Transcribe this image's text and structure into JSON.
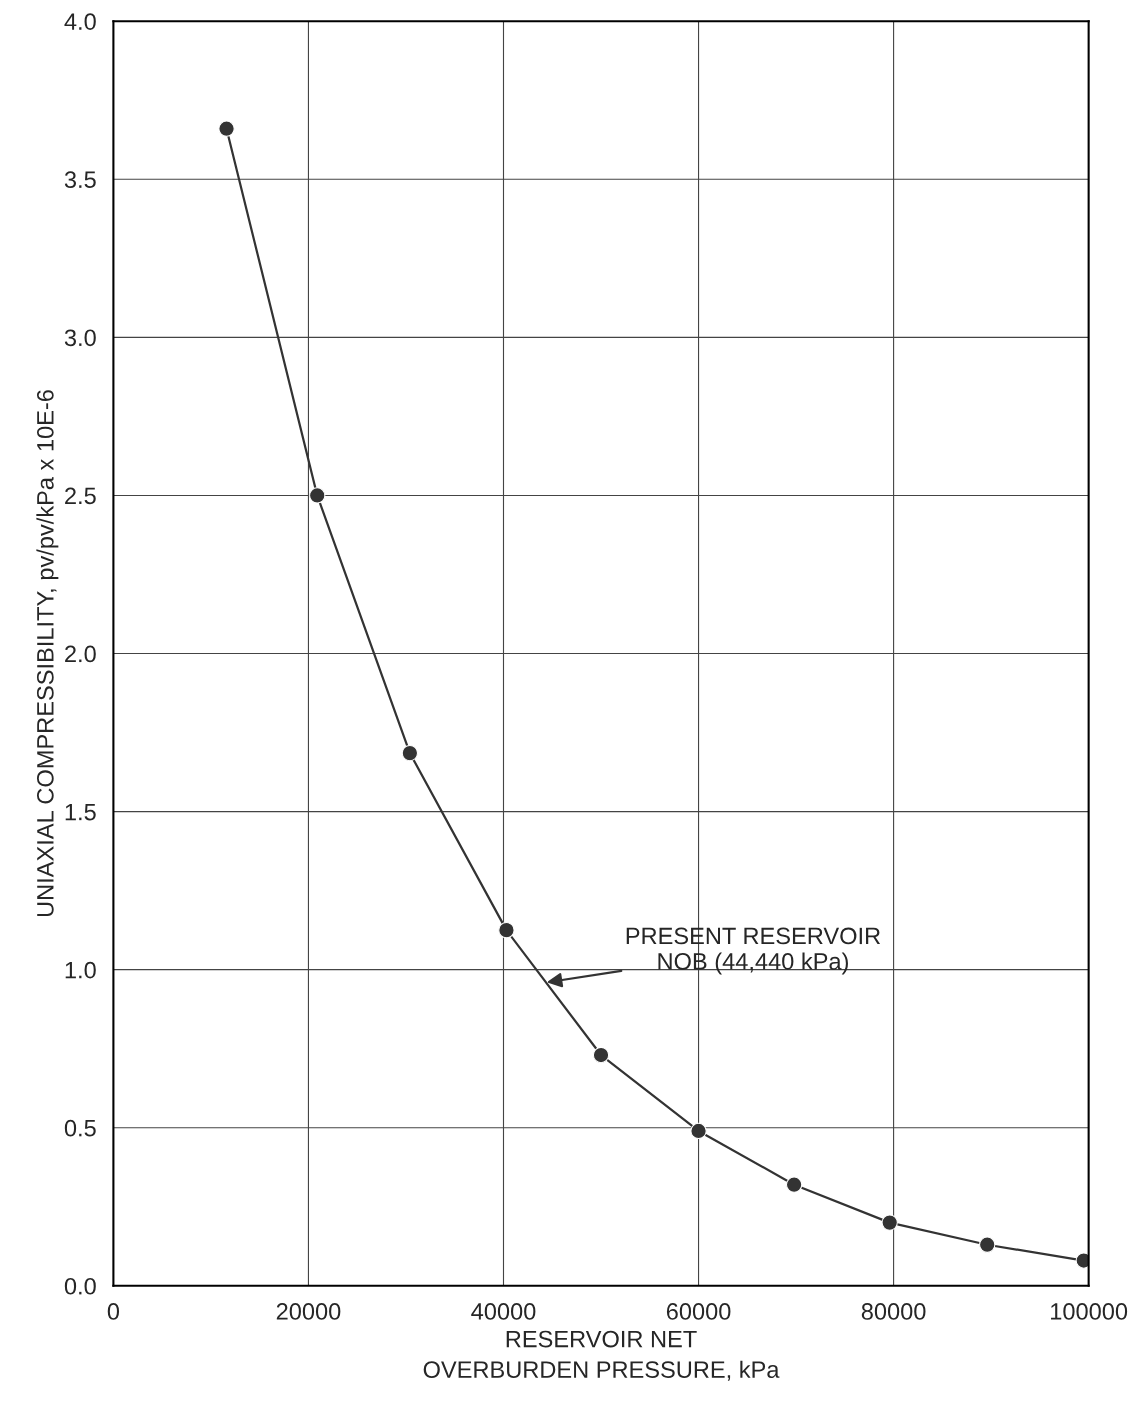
{
  "chart_data": {
    "type": "line",
    "xlabel": "RESERVOIR NET\nOVERBURDEN PRESSURE, kPa",
    "ylabel": "UNIAXIAL COMPRESSIBILITY, pv/pv/kPa x 10E-6",
    "x": [
      11600,
      20900,
      30400,
      40300,
      50000,
      60000,
      69800,
      79600,
      89600,
      99500
    ],
    "series": [
      {
        "color": "#333333",
        "values": [
          3.66,
          2.5,
          1.685,
          1.125,
          0.73,
          0.49,
          0.32,
          0.2,
          0.13,
          0.08
        ]
      }
    ],
    "xlim": [
      0,
      100000
    ],
    "xticks": [
      0,
      20000,
      40000,
      60000,
      80000,
      100000
    ],
    "ylim": [
      0,
      4
    ],
    "yticks": [
      {
        "value": 0,
        "label": "0.0"
      },
      {
        "value": 0.5,
        "label": "0.5"
      },
      {
        "value": 1,
        "label": "1.0"
      },
      {
        "value": 1.5,
        "label": "1.5"
      },
      {
        "value": 2,
        "label": "2.0"
      },
      {
        "value": 2.5,
        "label": "2.5"
      },
      {
        "value": 3,
        "label": "3.0"
      },
      {
        "value": 3.5,
        "label": "3.5"
      },
      {
        "value": 4,
        "label": "4.0"
      }
    ],
    "grid": true,
    "marker": "circle",
    "line_style": "solid",
    "annotations": [
      {
        "text": "PRESENT RESERVOIR\nNOB (44,440 kPa)",
        "x": 44440,
        "y": 0.96
      }
    ]
  }
}
